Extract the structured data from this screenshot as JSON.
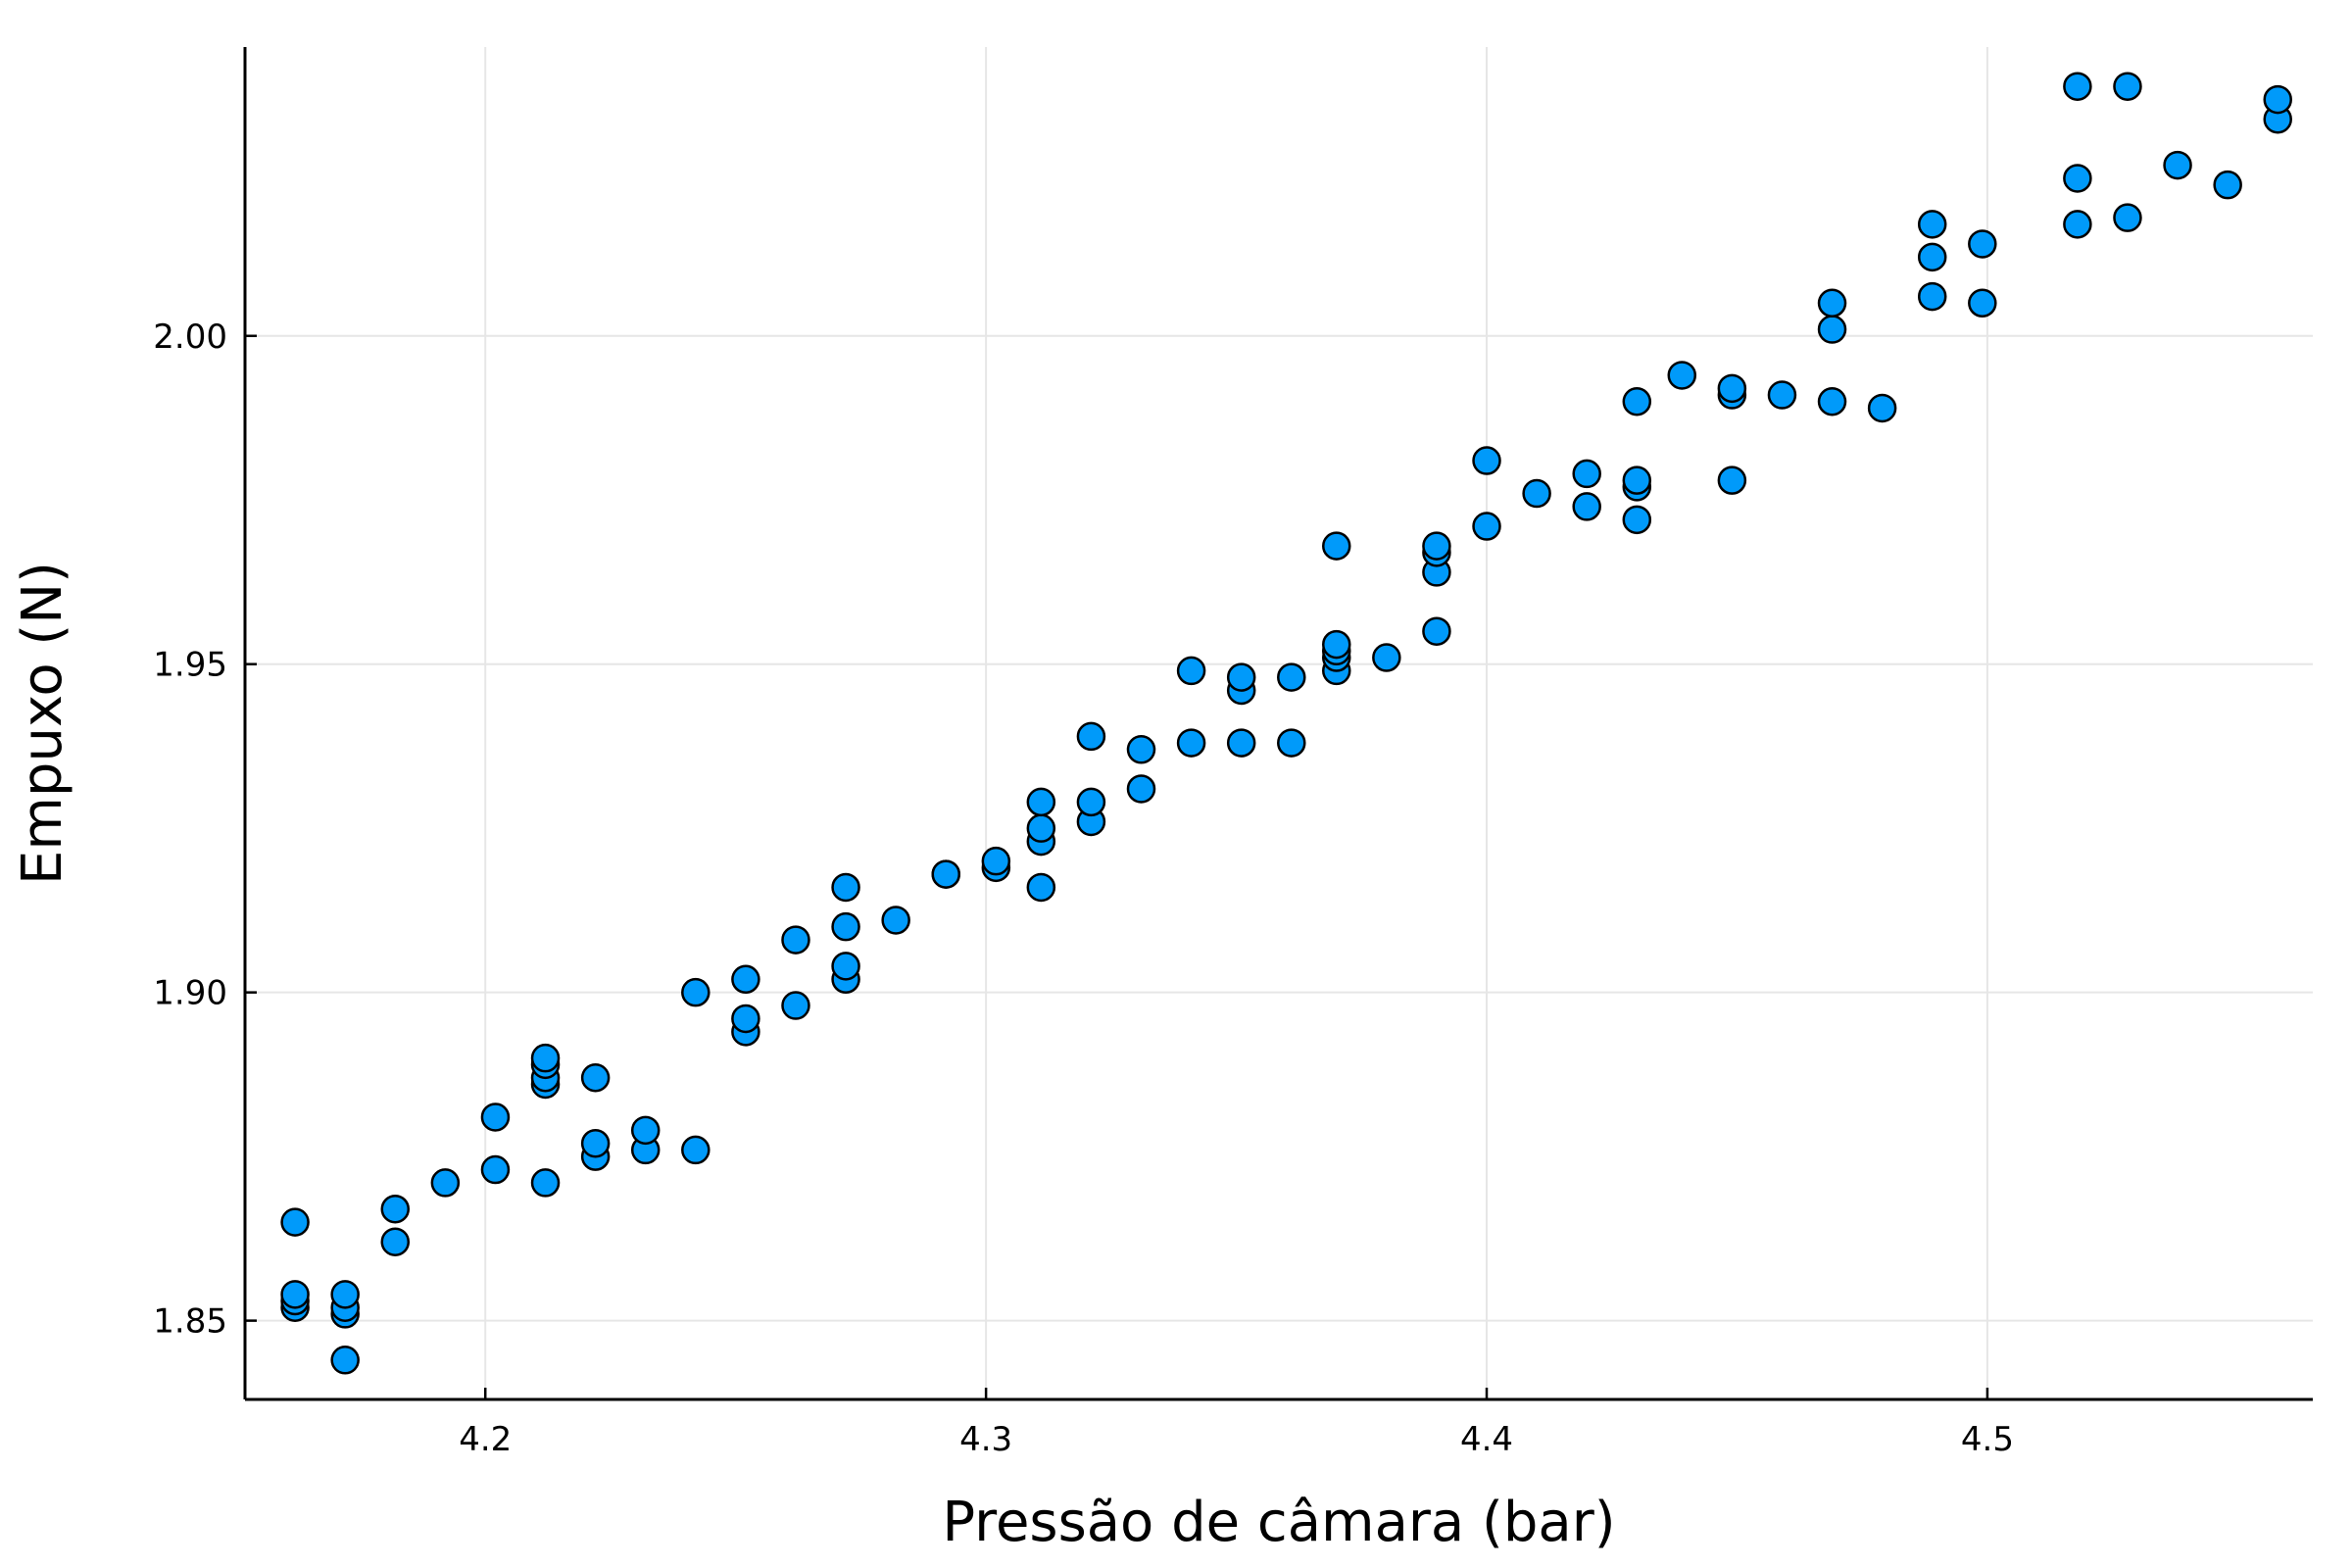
{
  "chart_data": {
    "type": "scatter",
    "title": "",
    "xlabel": "Pressão de câmara (bar)",
    "ylabel": "Empuxo (N)",
    "xlim": [
      4.152,
      4.565
    ],
    "ylim": [
      1.838,
      2.044
    ],
    "xticks": [
      {
        "value": 4.2,
        "label": "4.2"
      },
      {
        "value": 4.3,
        "label": "4.3"
      },
      {
        "value": 4.4,
        "label": "4.4"
      },
      {
        "value": 4.5,
        "label": "4.5"
      }
    ],
    "yticks": [
      {
        "value": 1.85,
        "label": "1.85"
      },
      {
        "value": 1.9,
        "label": "1.90"
      },
      {
        "value": 1.95,
        "label": "1.95"
      },
      {
        "value": 2.0,
        "label": "2.00"
      }
    ],
    "grid": true,
    "legend": "none",
    "marker_color": "#009AFA",
    "marker_edge_color": "#000000",
    "points": [
      [
        4.162,
        1.852
      ],
      [
        4.162,
        1.853
      ],
      [
        4.162,
        1.854
      ],
      [
        4.162,
        1.865
      ],
      [
        4.172,
        1.844
      ],
      [
        4.172,
        1.851
      ],
      [
        4.172,
        1.852
      ],
      [
        4.172,
        1.854
      ],
      [
        4.182,
        1.862
      ],
      [
        4.182,
        1.867
      ],
      [
        4.192,
        1.871
      ],
      [
        4.202,
        1.873
      ],
      [
        4.202,
        1.881
      ],
      [
        4.212,
        1.871
      ],
      [
        4.212,
        1.886
      ],
      [
        4.212,
        1.887
      ],
      [
        4.212,
        1.889
      ],
      [
        4.212,
        1.89
      ],
      [
        4.222,
        1.875
      ],
      [
        4.222,
        1.877
      ],
      [
        4.222,
        1.887
      ],
      [
        4.232,
        1.876
      ],
      [
        4.232,
        1.879
      ],
      [
        4.242,
        1.876
      ],
      [
        4.242,
        1.9
      ],
      [
        4.252,
        1.894
      ],
      [
        4.252,
        1.896
      ],
      [
        4.252,
        1.902
      ],
      [
        4.262,
        1.898
      ],
      [
        4.262,
        1.908
      ],
      [
        4.272,
        1.902
      ],
      [
        4.272,
        1.904
      ],
      [
        4.272,
        1.91
      ],
      [
        4.272,
        1.916
      ],
      [
        4.282,
        1.911
      ],
      [
        4.292,
        1.918
      ],
      [
        4.292,
        1.918
      ],
      [
        4.302,
        1.919
      ],
      [
        4.302,
        1.92
      ],
      [
        4.311,
        1.916
      ],
      [
        4.311,
        1.923
      ],
      [
        4.311,
        1.925
      ],
      [
        4.311,
        1.929
      ],
      [
        4.321,
        1.926
      ],
      [
        4.321,
        1.929
      ],
      [
        4.321,
        1.939
      ],
      [
        4.331,
        1.931
      ],
      [
        4.331,
        1.937
      ],
      [
        4.341,
        1.938
      ],
      [
        4.341,
        1.949
      ],
      [
        4.351,
        1.938
      ],
      [
        4.351,
        1.946
      ],
      [
        4.351,
        1.948
      ],
      [
        4.361,
        1.938
      ],
      [
        4.361,
        1.948
      ],
      [
        4.37,
        1.949
      ],
      [
        4.37,
        1.951
      ],
      [
        4.37,
        1.952
      ],
      [
        4.37,
        1.953
      ],
      [
        4.37,
        1.968
      ],
      [
        4.38,
        1.951
      ],
      [
        4.39,
        1.955
      ],
      [
        4.39,
        1.964
      ],
      [
        4.39,
        1.967
      ],
      [
        4.39,
        1.968
      ],
      [
        4.4,
        1.971
      ],
      [
        4.4,
        1.981
      ],
      [
        4.41,
        1.976
      ],
      [
        4.42,
        1.974
      ],
      [
        4.42,
        1.979
      ],
      [
        4.43,
        1.972
      ],
      [
        4.43,
        1.977
      ],
      [
        4.43,
        1.978
      ],
      [
        4.43,
        1.99
      ],
      [
        4.439,
        1.994
      ],
      [
        4.449,
        1.978
      ],
      [
        4.449,
        1.991
      ],
      [
        4.449,
        1.992
      ],
      [
        4.459,
        1.991
      ],
      [
        4.469,
        1.99
      ],
      [
        4.469,
        2.001
      ],
      [
        4.469,
        2.005
      ],
      [
        4.479,
        1.989
      ],
      [
        4.489,
        2.006
      ],
      [
        4.489,
        2.012
      ],
      [
        4.489,
        2.017
      ],
      [
        4.499,
        2.005
      ],
      [
        4.499,
        2.014
      ],
      [
        4.518,
        2.017
      ],
      [
        4.518,
        2.024
      ],
      [
        4.518,
        2.038
      ],
      [
        4.528,
        2.018
      ],
      [
        4.528,
        2.038
      ],
      [
        4.538,
        2.026
      ],
      [
        4.548,
        2.023
      ],
      [
        4.558,
        2.033
      ],
      [
        4.558,
        2.036
      ]
    ]
  }
}
